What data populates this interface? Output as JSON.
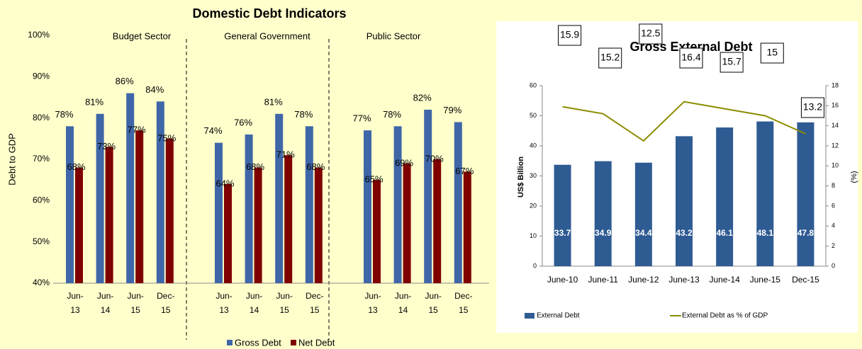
{
  "chart_data": [
    {
      "type": "bar",
      "title": "Domestic Debt Indicators",
      "ylabel": "Debt  to GDP",
      "groups": [
        "Budget Sector",
        "General Government",
        "Public Sector"
      ],
      "categories": [
        "Jun-13",
        "Jun-14",
        "Jun-15",
        "Dec-15",
        "Jun-13",
        "Jun-14",
        "Jun-15",
        "Dec-15",
        "Jun-13",
        "Jun-14",
        "Jun-15",
        "Dec-15"
      ],
      "series": [
        {
          "name": "Gross Debt",
          "color": "#3f67a8",
          "values": [
            78,
            81,
            86,
            84,
            74,
            76,
            81,
            78,
            77,
            78,
            82,
            79
          ],
          "value_labels": [
            "78%",
            "81%",
            "86%",
            "84%",
            "74%",
            "76%",
            "81%",
            "78%",
            "77%",
            "78%",
            "82%",
            "79%"
          ]
        },
        {
          "name": "Net Debt",
          "color": "#7f0000",
          "values": [
            68,
            73,
            77,
            75,
            64,
            68,
            71,
            68,
            65,
            69,
            70,
            67
          ],
          "value_labels": [
            "68%",
            "73%",
            "77%",
            "75%",
            "64%",
            "68%",
            "71%",
            "68%",
            "65%",
            "69%",
            "70%",
            "67%"
          ]
        }
      ],
      "ylim": [
        40,
        100
      ],
      "yticks": [
        {
          "value": 40,
          "label": "40%"
        },
        {
          "value": 50,
          "label": "50%"
        },
        {
          "value": 60,
          "label": "60%"
        },
        {
          "value": 70,
          "label": "70%"
        },
        {
          "value": 80,
          "label": "80%"
        },
        {
          "value": 90,
          "label": "90%"
        },
        {
          "value": 100,
          "label": "100%"
        }
      ],
      "legend": "bottom"
    },
    {
      "type": "combo",
      "title": "Gross External Debt",
      "ylabel": "US$ Billion",
      "y2label": "(%)",
      "categories": [
        "June-10",
        "June-11",
        "June-12",
        "June-13",
        "June-14",
        "June-15",
        "Dec-15"
      ],
      "series": [
        {
          "name": "External Debt",
          "color": "#2f5b93",
          "values": [
            33.7,
            34.9,
            34.4,
            43.2,
            46.1,
            48.1,
            47.8
          ]
        },
        {
          "name": "External Debt as % of GDP",
          "color": "#8c8c00",
          "axis": "y2",
          "values": [
            15.9,
            15.2,
            12.5,
            16.4,
            15.7,
            15.0,
            13.2
          ]
        }
      ],
      "ylim": [
        0,
        60
      ],
      "yticks": [
        0,
        10,
        20,
        30,
        40,
        50,
        60
      ],
      "y2lim": [
        0,
        18
      ],
      "y2ticks": [
        0,
        2,
        4,
        6,
        8,
        10,
        12,
        14,
        16,
        18
      ],
      "legend": "bottom"
    }
  ]
}
